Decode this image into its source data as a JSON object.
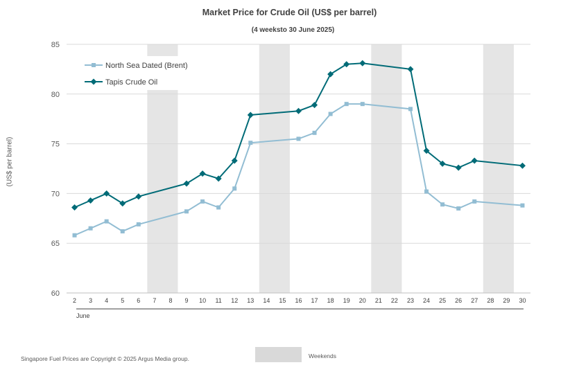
{
  "chart_data": {
    "type": "line",
    "title": "Market Price for Crude  Oil (US$ per barrel)",
    "subtitle": "(4 weeksto 30 June 2025)",
    "ylabel": "(US$ per barrel)",
    "xlabel": "June",
    "ylim": [
      60,
      85
    ],
    "yticks": [
      "60",
      "65",
      "70",
      "75",
      "80",
      "85"
    ],
    "categories": [
      "2",
      "3",
      "4",
      "5",
      "6",
      "7",
      "8",
      "9",
      "10",
      "11",
      "12",
      "13",
      "14",
      "15",
      "16",
      "17",
      "18",
      "19",
      "20",
      "21",
      "22",
      "23",
      "24",
      "25",
      "26",
      "27",
      "28",
      "29",
      "30"
    ],
    "weekend_bands": [
      [
        "7",
        "8"
      ],
      [
        "14",
        "15"
      ],
      [
        "21",
        "22"
      ],
      [
        "28",
        "29"
      ]
    ],
    "series": [
      {
        "name": "North Sea Dated (Brent)",
        "color": "#92bdd3",
        "marker": "square",
        "values": [
          65.8,
          66.5,
          67.2,
          66.2,
          66.9,
          null,
          null,
          68.2,
          69.2,
          68.6,
          70.5,
          75.1,
          null,
          null,
          75.5,
          76.1,
          78.0,
          79.0,
          79.0,
          null,
          null,
          78.5,
          70.2,
          68.9,
          68.5,
          69.2,
          null,
          null,
          68.8
        ]
      },
      {
        "name": "Tapis Crude Oil",
        "color": "#006b77",
        "marker": "diamond",
        "values": [
          68.6,
          69.3,
          70.0,
          69.0,
          69.7,
          null,
          null,
          71.0,
          72.0,
          71.5,
          73.3,
          77.9,
          null,
          null,
          78.3,
          78.9,
          82.0,
          83.0,
          83.1,
          null,
          null,
          82.5,
          74.3,
          73.0,
          72.6,
          73.3,
          null,
          null,
          72.8
        ]
      }
    ],
    "legend_position": "top-left",
    "grid": true
  },
  "footer": {
    "copyright": "Singapore Fuel Prices are Copyright © 2025 Argus Media group.",
    "weekends_label": "Weekends"
  }
}
